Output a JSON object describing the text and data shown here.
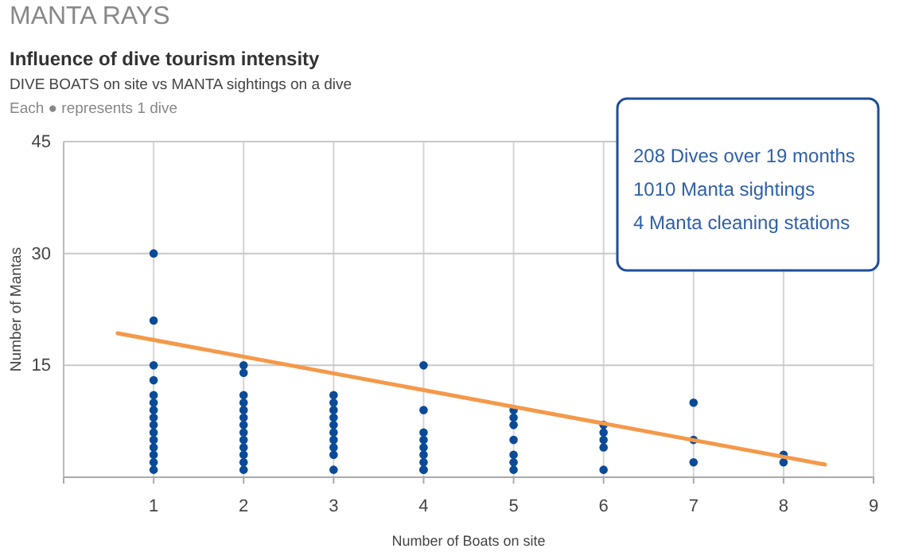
{
  "chart_data": {
    "type": "scatter",
    "title": "MANTA RAYS",
    "subtitle": "Influence of dive tourism intensity",
    "annotations": [
      "DIVE BOATS on site vs MANTA sightings on a dive",
      "Each ● represents 1 dive",
      "208 Dives over 19 months",
      "1010 Manta sightings",
      "4 Manta cleaning stations"
    ],
    "xlabel": "Number of Boats on site",
    "ylabel": "Number of Mantas",
    "xlim": [
      0,
      9
    ],
    "xticks": [
      1,
      2,
      3,
      4,
      5,
      6,
      7,
      8,
      9
    ],
    "ylim": [
      0,
      45
    ],
    "yticks": [
      15,
      30,
      45
    ],
    "grid": true,
    "series": [
      {
        "marker": "circle",
        "color": "#0b4a96",
        "x": [
          1,
          1,
          1,
          1,
          1,
          1,
          1,
          1,
          1,
          1,
          1,
          1,
          1,
          1,
          1,
          2,
          2,
          2,
          2,
          2,
          2,
          2,
          2,
          2,
          2,
          2,
          2,
          2,
          3,
          3,
          3,
          3,
          3,
          3,
          3,
          3,
          3,
          3,
          4,
          4,
          4,
          4,
          4,
          4,
          4,
          4,
          4,
          5,
          5,
          5,
          5,
          5,
          5,
          5,
          6,
          6,
          6,
          6,
          6,
          7,
          7,
          7,
          8,
          8
        ],
        "values": [
          30,
          21,
          15,
          13,
          11,
          10,
          9,
          8,
          7,
          6,
          5,
          4,
          3,
          2,
          1,
          15,
          14,
          11,
          10,
          9,
          8,
          7,
          6,
          5,
          4,
          3,
          2,
          1,
          11,
          10,
          9,
          8,
          7,
          6,
          5,
          4,
          3,
          1,
          15,
          9,
          6,
          5,
          4,
          3,
          2,
          1,
          1,
          9,
          8,
          7,
          5,
          3,
          2,
          1,
          7,
          6,
          5,
          4,
          1,
          10,
          5,
          2,
          3,
          2
        ]
      },
      {
        "type": "line",
        "marker": "none",
        "color": "#f4994a",
        "x": [
          0.6,
          8.46
        ],
        "values": [
          19.3,
          1.7
        ]
      }
    ]
  }
}
